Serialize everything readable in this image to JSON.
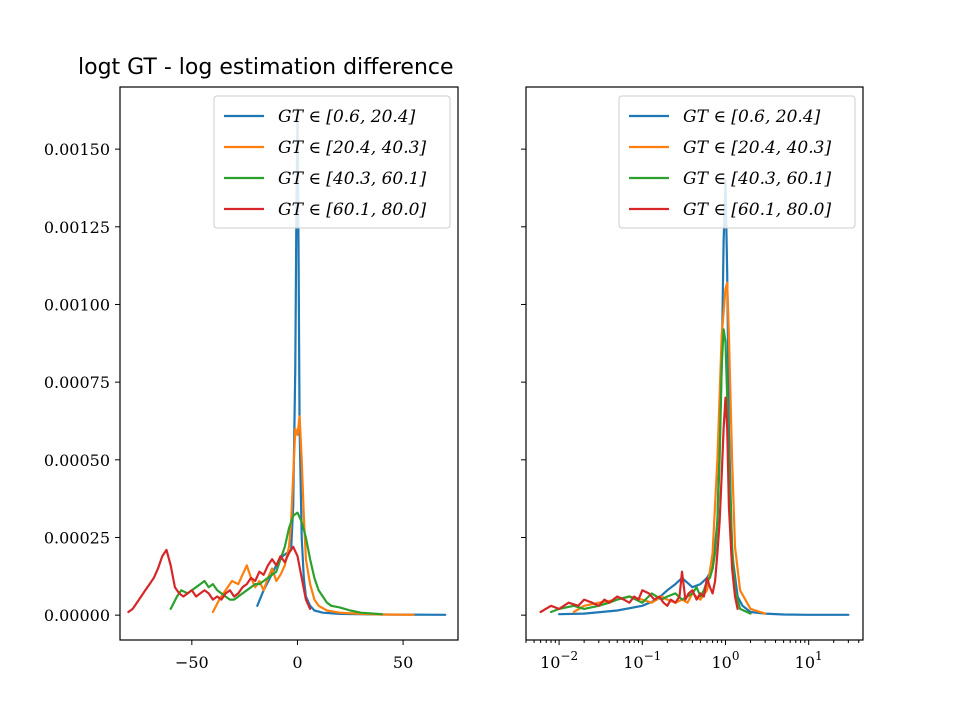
{
  "title": "logt GT - log estimation difference",
  "colors": {
    "series": [
      "#1f77b4",
      "#ff7f0e",
      "#2ca02c",
      "#d62728"
    ]
  },
  "chart_data": [
    {
      "type": "line",
      "title": "logt GT - log estimation difference",
      "xlabel": "",
      "ylabel": "",
      "xlim": [
        -84,
        76
      ],
      "ylim": [
        -8e-05,
        0.0017
      ],
      "xscale": "linear",
      "grid": false,
      "legend": "upper right",
      "xticks": [
        -50,
        0,
        50
      ],
      "xtick_labels": [
        "−50",
        "0",
        "50"
      ],
      "yticks": [
        0,
        0.00025,
        0.0005,
        0.00075,
        0.001,
        0.00125,
        0.0015
      ],
      "ytick_labels": [
        "0.00000",
        "0.00025",
        "0.00050",
        "0.00075",
        "0.00100",
        "0.00125",
        "0.00150"
      ],
      "series": [
        {
          "name": "GT ∈ [0.6, 20.4]",
          "x": [
            -19,
            -16,
            -13,
            -10,
            -7,
            -5,
            -3,
            -2,
            -1,
            -0.5,
            0,
            0.5,
            1,
            2,
            3,
            4,
            6,
            8,
            12,
            20,
            40,
            70
          ],
          "y": [
            3e-05,
            8e-05,
            0.00012,
            0.00016,
            0.00019,
            0.0002,
            0.00021,
            0.00035,
            0.0008,
            0.0013,
            0.00163,
            0.0012,
            0.0006,
            0.00025,
            0.00012,
            6e-05,
            3e-05,
            1.5e-05,
            8e-06,
            4e-06,
            2e-06,
            1e-06
          ]
        },
        {
          "name": "GT ∈ [20.4, 40.3]",
          "x": [
            -40,
            -37,
            -34,
            -31,
            -28,
            -26,
            -24,
            -22,
            -20,
            -18,
            -16,
            -14,
            -12,
            -10,
            -8,
            -6,
            -4,
            -3,
            -2,
            -1,
            0,
            1,
            2,
            3,
            4,
            6,
            8,
            10,
            14,
            20,
            30,
            40,
            55
          ],
          "y": [
            1e-05,
            5e-05,
            8e-05,
            0.00011,
            0.0001,
            0.00013,
            0.00016,
            0.00012,
            9e-05,
            0.00011,
            8e-05,
            0.00012,
            0.00015,
            0.00011,
            0.00013,
            0.00016,
            0.00022,
            0.0003,
            0.00045,
            0.0006,
            0.00058,
            0.00064,
            0.0005,
            0.00032,
            0.00018,
            0.0001,
            5e-05,
            3e-05,
            1.5e-05,
            8e-06,
            4e-06,
            2e-06,
            1e-06
          ]
        },
        {
          "name": "GT ∈ [40.3, 60.1]",
          "x": [
            -60,
            -57,
            -55,
            -52,
            -50,
            -48,
            -46,
            -44,
            -42,
            -40,
            -38,
            -36,
            -34,
            -32,
            -30,
            -28,
            -26,
            -24,
            -22,
            -20,
            -18,
            -16,
            -14,
            -12,
            -10,
            -8,
            -6,
            -4,
            -2,
            0,
            2,
            4,
            6,
            8,
            10,
            12,
            14,
            16,
            20,
            25,
            30,
            40
          ],
          "y": [
            2e-05,
            6e-05,
            8e-05,
            7e-05,
            8e-05,
            9e-05,
            0.0001,
            0.00011,
            9e-05,
            0.0001,
            8e-05,
            7e-05,
            6e-05,
            5e-05,
            5e-05,
            6e-05,
            7e-05,
            8e-05,
            9e-05,
            0.0001,
            0.0001,
            0.00011,
            0.00012,
            0.00013,
            0.00014,
            0.00018,
            0.00022,
            0.00028,
            0.00032,
            0.00033,
            0.0003,
            0.00025,
            0.00018,
            0.00012,
            8e-05,
            6e-05,
            4e-05,
            3e-05,
            2.5e-05,
            1.5e-05,
            8e-06,
            3e-06
          ]
        },
        {
          "name": "GT ∈ [60.1, 80.0]",
          "x": [
            -80,
            -78,
            -76,
            -74,
            -72,
            -70,
            -68,
            -66,
            -64,
            -62,
            -60,
            -58,
            -56,
            -54,
            -52,
            -50,
            -48,
            -46,
            -44,
            -42,
            -40,
            -38,
            -36,
            -34,
            -32,
            -30,
            -28,
            -26,
            -24,
            -22,
            -20,
            -18,
            -16,
            -14,
            -12,
            -10,
            -8,
            -6,
            -4,
            -2,
            0,
            2,
            4,
            6
          ],
          "y": [
            1e-05,
            2e-05,
            4e-05,
            6e-05,
            8e-05,
            0.0001,
            0.00012,
            0.00015,
            0.00019,
            0.00021,
            0.00016,
            9e-05,
            7e-05,
            6e-05,
            7e-05,
            8e-05,
            6e-05,
            7e-05,
            8e-05,
            7e-05,
            5e-05,
            6e-05,
            5e-05,
            7e-05,
            8e-05,
            6e-05,
            7e-05,
            9e-05,
            0.0001,
            0.00012,
            0.00011,
            0.00014,
            0.00013,
            0.00016,
            0.00018,
            0.00016,
            0.00019,
            0.00017,
            0.0002,
            0.00022,
            0.00019,
            0.00012,
            5e-05,
            2e-05
          ]
        }
      ]
    },
    {
      "type": "line",
      "title": "",
      "xlabel": "",
      "ylabel": "",
      "xlim": [
        0.004,
        45
      ],
      "ylim": [
        -8e-05,
        0.0017
      ],
      "xscale": "log",
      "grid": false,
      "legend": "upper right",
      "xticks": [
        0.01,
        0.1,
        1,
        10
      ],
      "xtick_labels": [
        "10−2",
        "10−1",
        "100",
        "101"
      ],
      "series": [
        {
          "name": "GT ∈ [0.6, 20.4]",
          "x": [
            0.01,
            0.02,
            0.05,
            0.1,
            0.15,
            0.2,
            0.25,
            0.3,
            0.4,
            0.5,
            0.6,
            0.7,
            0.8,
            0.9,
            0.95,
            1,
            1.05,
            1.1,
            1.2,
            1.4,
            1.6,
            2,
            3,
            5,
            10,
            30
          ],
          "y": [
            3e-06,
            5e-06,
            1.5e-05,
            3e-05,
            5e-05,
            8e-05,
            0.0001,
            0.00012,
            9e-05,
            0.0001,
            0.00012,
            0.00015,
            0.0003,
            0.0008,
            0.0012,
            0.0014,
            0.0011,
            0.0006,
            0.0002,
            6e-05,
            3e-05,
            1e-05,
            5e-06,
            2e-06,
            1e-06,
            1e-06
          ]
        },
        {
          "name": "GT ∈ [20.4, 40.3]",
          "x": [
            0.015,
            0.02,
            0.03,
            0.05,
            0.07,
            0.1,
            0.13,
            0.17,
            0.2,
            0.25,
            0.3,
            0.35,
            0.4,
            0.5,
            0.6,
            0.7,
            0.8,
            0.9,
            1,
            1.05,
            1.1,
            1.2,
            1.3,
            1.5,
            2,
            3
          ],
          "y": [
            1e-05,
            3e-05,
            4e-05,
            5e-05,
            6e-05,
            5e-05,
            4e-05,
            6e-05,
            5e-05,
            4e-05,
            5e-05,
            4e-05,
            7e-05,
            5e-05,
            8e-05,
            0.0002,
            0.0005,
            0.0009,
            0.00105,
            0.00107,
            0.0009,
            0.0005,
            0.00022,
            8e-05,
            2e-05,
            5e-06
          ]
        },
        {
          "name": "GT ∈ [40.3, 60.1]",
          "x": [
            0.008,
            0.01,
            0.015,
            0.02,
            0.03,
            0.04,
            0.05,
            0.07,
            0.1,
            0.13,
            0.17,
            0.2,
            0.25,
            0.3,
            0.35,
            0.4,
            0.45,
            0.5,
            0.55,
            0.6,
            0.65,
            0.7,
            0.75,
            0.8,
            0.85,
            0.9,
            0.95,
            1,
            1.05,
            1.1,
            1.2,
            1.3,
            1.5,
            2
          ],
          "y": [
            1e-05,
            2e-05,
            3e-05,
            2e-05,
            3e-05,
            4e-05,
            5e-05,
            6e-05,
            4e-05,
            7e-05,
            5e-05,
            6e-05,
            7e-05,
            5e-05,
            6e-05,
            7e-05,
            9e-05,
            6e-05,
            8e-05,
            0.00011,
            0.00012,
            0.00015,
            0.0002,
            0.0003,
            0.0005,
            0.0008,
            0.00092,
            0.00088,
            0.0007,
            0.0005,
            0.00022,
            8e-05,
            2e-05,
            5e-06
          ]
        },
        {
          "name": "GT ∈ [60.1, 80.0]",
          "x": [
            0.006,
            0.008,
            0.01,
            0.013,
            0.017,
            0.02,
            0.025,
            0.03,
            0.035,
            0.04,
            0.05,
            0.06,
            0.07,
            0.08,
            0.09,
            0.1,
            0.12,
            0.14,
            0.16,
            0.18,
            0.2,
            0.22,
            0.25,
            0.28,
            0.3,
            0.33,
            0.36,
            0.4,
            0.45,
            0.5,
            0.55,
            0.6,
            0.65,
            0.7,
            0.75,
            0.8,
            0.85,
            0.9,
            0.95,
            1,
            1.05,
            1.1,
            1.2,
            1.3,
            1.4
          ],
          "y": [
            1e-05,
            3e-05,
            2e-05,
            4e-05,
            3e-05,
            5e-05,
            4e-05,
            3e-05,
            5e-05,
            4e-05,
            6e-05,
            5e-05,
            4e-05,
            6e-05,
            5e-05,
            8e-05,
            7e-05,
            5e-05,
            6e-05,
            4e-05,
            3e-05,
            5e-05,
            4e-05,
            6e-05,
            0.00014,
            5e-05,
            7e-05,
            8e-05,
            5e-05,
            7e-05,
            6e-05,
            0.00012,
            9e-05,
            7e-05,
            0.00011,
            0.0002,
            0.0003,
            0.00045,
            0.0006,
            0.0007,
            0.0006,
            0.00035,
            0.00015,
            6e-05,
            2e-05
          ]
        }
      ]
    }
  ]
}
